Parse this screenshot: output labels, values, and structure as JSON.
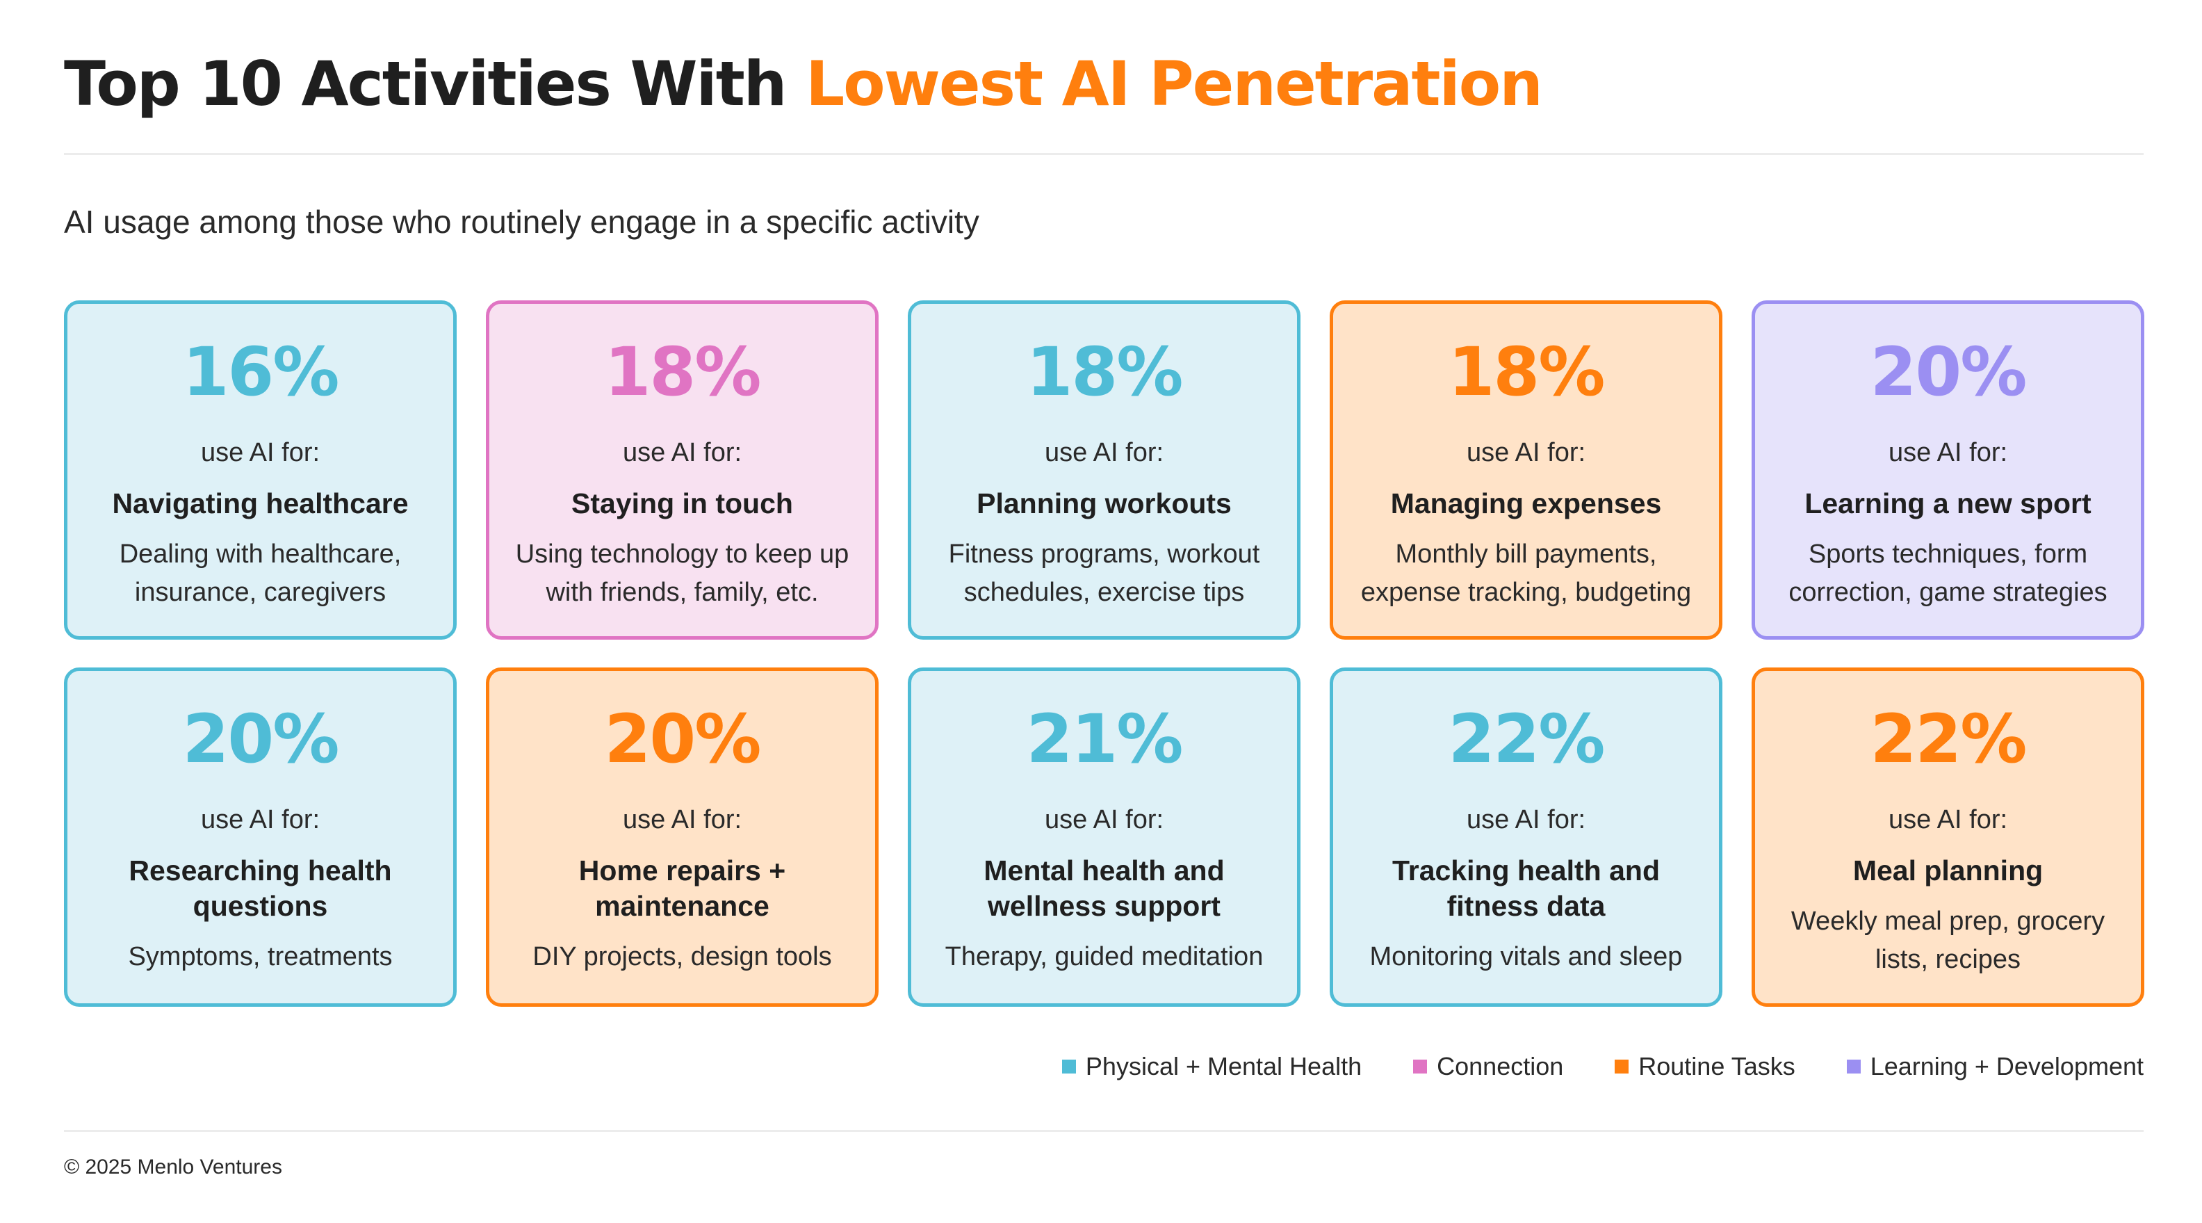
{
  "header": {
    "title_main": "Top 10 Activities With ",
    "title_accent": "Lowest AI Penetration",
    "subtitle": "AI usage among those who routinely engage in a specific activity"
  },
  "colors": {
    "accent": "#ff7f0e",
    "physical_mental_health": "#4fbcd6",
    "connection": "#e074c3",
    "routine_tasks": "#ff7f0e",
    "learning_development": "#9b8ff2"
  },
  "chart_data": {
    "type": "table",
    "title": "Top 10 Activities With Lowest AI Penetration",
    "subtitle": "AI usage among those who routinely engage in a specific activity",
    "columns": [
      "percent",
      "label",
      "activity",
      "description",
      "category"
    ],
    "rows": [
      {
        "percent": "16%",
        "value": 16,
        "label": "use AI for:",
        "activity": "Navigating healthcare",
        "description": "Dealing with healthcare, insurance, caregivers",
        "category": "health"
      },
      {
        "percent": "18%",
        "value": 18,
        "label": "use AI for:",
        "activity": "Staying in touch",
        "description": "Using technology to keep up with friends, family, etc.",
        "category": "connection"
      },
      {
        "percent": "18%",
        "value": 18,
        "label": "use AI for:",
        "activity": "Planning workouts",
        "description": "Fitness programs, workout schedules, exercise tips",
        "category": "health"
      },
      {
        "percent": "18%",
        "value": 18,
        "label": "use AI for:",
        "activity": "Managing expenses",
        "description": "Monthly bill payments, expense tracking, budgeting",
        "category": "routine"
      },
      {
        "percent": "20%",
        "value": 20,
        "label": "use AI for:",
        "activity": "Learning a new sport",
        "description": "Sports techniques, form correction, game strategies",
        "category": "learning"
      },
      {
        "percent": "20%",
        "value": 20,
        "label": "use AI for:",
        "activity": "Researching health questions",
        "description": "Symptoms, treatments",
        "category": "health"
      },
      {
        "percent": "20%",
        "value": 20,
        "label": "use AI for:",
        "activity": "Home repairs + maintenance",
        "description": "DIY projects, design tools",
        "category": "routine"
      },
      {
        "percent": "21%",
        "value": 21,
        "label": "use AI for:",
        "activity": "Mental health and wellness support",
        "description": "Therapy, guided meditation",
        "category": "health"
      },
      {
        "percent": "22%",
        "value": 22,
        "label": "use AI for:",
        "activity": "Tracking health and fitness data",
        "description": "Monitoring vitals and sleep",
        "category": "health"
      },
      {
        "percent": "22%",
        "value": 22,
        "label": "use AI for:",
        "activity": "Meal planning",
        "description": "Weekly meal prep, grocery lists, recipes",
        "category": "routine"
      }
    ],
    "legend": [
      {
        "key": "health",
        "label": "Physical + Mental Health",
        "color": "#4fbcd6"
      },
      {
        "key": "connection",
        "label": "Connection",
        "color": "#e074c3"
      },
      {
        "key": "routine",
        "label": "Routine Tasks",
        "color": "#ff7f0e"
      },
      {
        "key": "learning",
        "label": "Learning + Development",
        "color": "#9b8ff2"
      }
    ],
    "legend_position": "bottom-right"
  },
  "footer": {
    "copyright": "© 2025 Menlo Ventures"
  }
}
